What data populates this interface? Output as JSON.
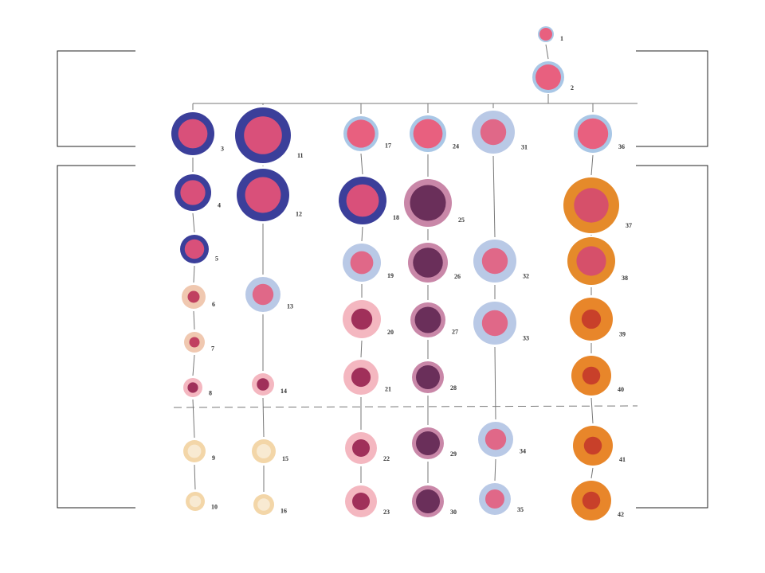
{
  "cells": [
    {
      "label": "1"
    },
    {
      "label": "2"
    },
    {
      "label": "3"
    },
    {
      "label": "4"
    },
    {
      "label": "5"
    },
    {
      "label": "6"
    },
    {
      "label": "7"
    },
    {
      "label": "8"
    },
    {
      "label": "9"
    },
    {
      "label": "10"
    },
    {
      "label": "11"
    },
    {
      "label": "12"
    },
    {
      "label": "13"
    },
    {
      "label": "14"
    },
    {
      "label": "15"
    },
    {
      "label": "16"
    },
    {
      "label": "17"
    },
    {
      "label": "18"
    },
    {
      "label": "19"
    },
    {
      "label": "20"
    },
    {
      "label": "21"
    },
    {
      "label": "22"
    },
    {
      "label": "23"
    },
    {
      "label": "24"
    },
    {
      "label": "25"
    },
    {
      "label": "26"
    },
    {
      "label": "27"
    },
    {
      "label": "28"
    },
    {
      "label": "29"
    },
    {
      "label": "30"
    },
    {
      "label": "31"
    },
    {
      "label": "32"
    },
    {
      "label": "33"
    },
    {
      "label": "34"
    },
    {
      "label": "35"
    },
    {
      "label": "36"
    },
    {
      "label": "37"
    },
    {
      "label": "38"
    },
    {
      "label": "39"
    },
    {
      "label": "40"
    },
    {
      "label": "41"
    },
    {
      "label": "42"
    }
  ]
}
